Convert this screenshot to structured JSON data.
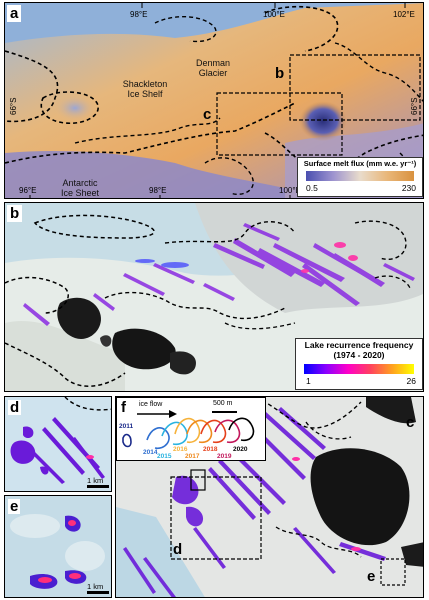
{
  "panels": {
    "a": {
      "label": "a",
      "place_names": {
        "shackleton": "Shackleton\nIce Shelf",
        "denman": "Denman\nGlacier",
        "antarctic": "Antarctic\nIce Sheet"
      },
      "top_ticks": [
        "98°E",
        "100°E",
        "102°E"
      ],
      "bottom_ticks": [
        "96°E",
        "98°E",
        "100°E"
      ],
      "left_tick": "66°S",
      "right_tick": "66°S",
      "inset_labels": [
        "b",
        "c"
      ],
      "legend": {
        "title": "Surface melt flux (mm w.e. yr⁻¹)",
        "min": "0.5",
        "max": "230",
        "colors": [
          "#4a4fb0",
          "#9d93cf",
          "#e9dccc",
          "#e9b77a",
          "#d9923f"
        ]
      }
    },
    "b": {
      "label": "b",
      "legend": {
        "title": "Lake recurrence frequency",
        "subtitle": "(1974 - 2020)",
        "min": "1",
        "max": "26",
        "colors": [
          "#0000ff",
          "#8a00ff",
          "#ff00c8",
          "#ff4060",
          "#ffa020",
          "#ffff00"
        ]
      }
    },
    "c": {
      "label": "c",
      "inset_labels": [
        "d",
        "e"
      ]
    },
    "d": {
      "label": "d",
      "scale": "1 km"
    },
    "e": {
      "label": "e",
      "scale": "1 km"
    },
    "f": {
      "label": "f",
      "flow": "ice flow",
      "scale": "500 m",
      "years": [
        "2011",
        "2014",
        "2015",
        "2016",
        "2017",
        "2018",
        "2019",
        "2020"
      ],
      "year_colors": [
        "#1a2a8a",
        "#2f6fd0",
        "#29b3e0",
        "#f6b23a",
        "#ef8a1e",
        "#e5401b",
        "#c2185b",
        "#000000"
      ]
    }
  }
}
